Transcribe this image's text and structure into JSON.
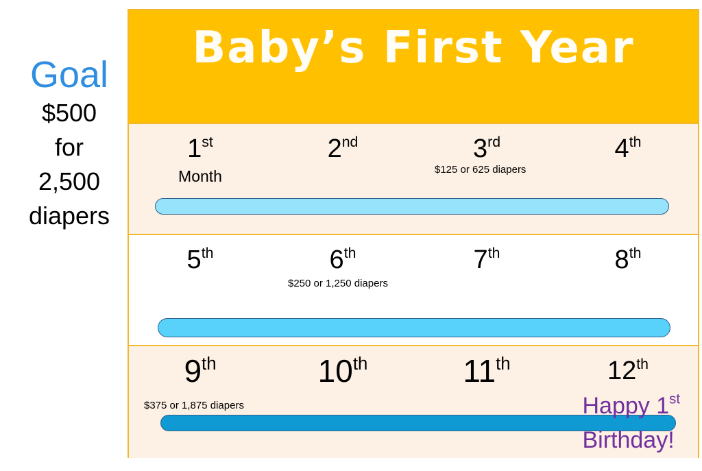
{
  "goal": {
    "title": "Goal",
    "amount": "$500",
    "for": "for",
    "count": "2,500",
    "unit": "diapers"
  },
  "board": {
    "title": "Baby’s First Year",
    "rows": [
      {
        "months": [
          {
            "n": "1",
            "suf": "st",
            "sub": "Month"
          },
          {
            "n": "2",
            "suf": "nd"
          },
          {
            "n": "3",
            "suf": "rd"
          },
          {
            "n": "4",
            "suf": "th"
          }
        ],
        "milestone": "$125 or 625 diapers"
      },
      {
        "months": [
          {
            "n": "5",
            "suf": "th"
          },
          {
            "n": "6",
            "suf": "th"
          },
          {
            "n": "7",
            "suf": "th"
          },
          {
            "n": "8",
            "suf": "th"
          }
        ],
        "milestone": "$250 or 1,250 diapers"
      },
      {
        "months": [
          {
            "n": "9",
            "suf": "th"
          },
          {
            "n": "10",
            "suf": "th"
          },
          {
            "n": "11",
            "suf": "th"
          },
          {
            "n": "12",
            "suf": "th"
          }
        ],
        "milestone": "$375 or 1,875 diapers"
      }
    ],
    "birthday": {
      "line1": "Happy 1",
      "suf": "st",
      "line2": "Birthday!"
    }
  },
  "colors": {
    "header": "#ffc000",
    "goal_title": "#2f8ee0",
    "bar1": "#96e3fb",
    "bar2": "#58d1fb",
    "bar3": "#0f9ad4",
    "birthday": "#7030a0"
  }
}
